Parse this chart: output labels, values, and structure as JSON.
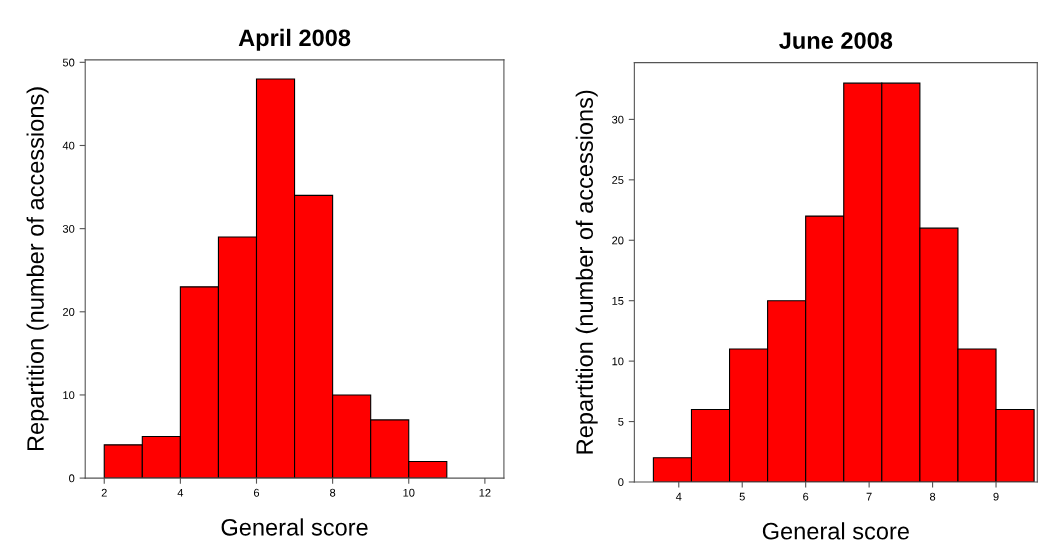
{
  "chart_data": [
    {
      "type": "histogram",
      "title": "April 2008",
      "xlabel": "General score",
      "ylabel": "Repartition (number of accessions)",
      "color": "#ff0000",
      "bins": [
        2,
        3,
        4,
        5,
        6,
        7,
        8,
        9,
        10,
        11
      ],
      "values": [
        4,
        5,
        23,
        29,
        48,
        34,
        10,
        7,
        2
      ],
      "xlim": [
        1.5,
        12.5
      ],
      "xticks": [
        2,
        4,
        6,
        8,
        10,
        12
      ],
      "ylim": [
        0,
        50.3
      ],
      "yticks": [
        0,
        10,
        20,
        30,
        40,
        50
      ],
      "grid": false
    },
    {
      "type": "histogram",
      "title": "June 2008",
      "xlabel": "General score",
      "ylabel": "Repartition (number of accessions)",
      "color": "#ff0000",
      "bins": [
        3.6,
        4.2,
        4.8,
        5.4,
        6.0,
        6.6,
        7.2,
        7.8,
        8.4,
        9.0,
        9.6
      ],
      "values": [
        2,
        6,
        11,
        15,
        22,
        33,
        33,
        21,
        11,
        6
      ],
      "xlim": [
        3.3,
        9.65
      ],
      "xticks": [
        4,
        5,
        6,
        7,
        8,
        9
      ],
      "ylim": [
        0,
        34.7
      ],
      "yticks": [
        0,
        5,
        10,
        15,
        20,
        25,
        30
      ],
      "grid": false
    }
  ]
}
